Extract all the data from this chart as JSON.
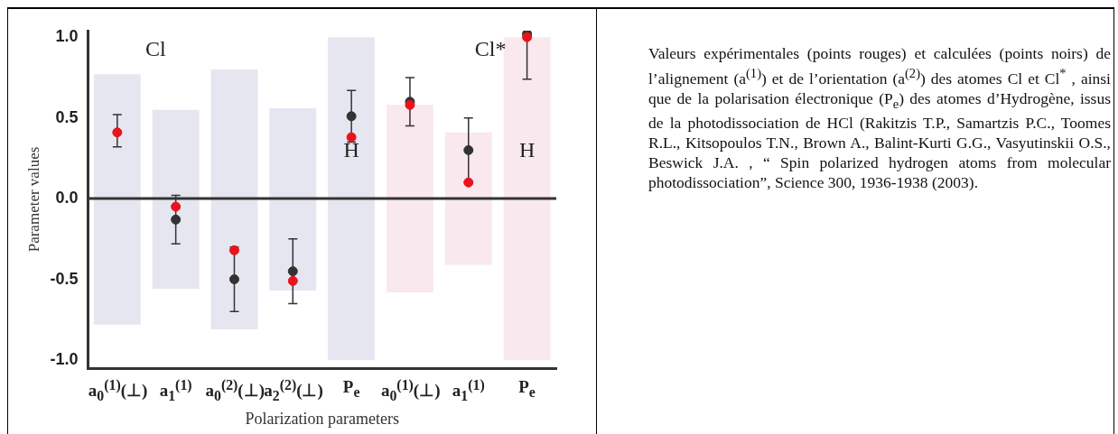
{
  "chart_data": [
    {
      "type": "bar",
      "xlabel": "Polarization parameters",
      "ylabel": "Parameter values",
      "categories": [
        "a$_{0}$$^{(1)}$(⊥)",
        "a$_{1}$$^{(1)}$",
        "a$_{0}$$^{(2)}$(⊥)",
        "a$_{2}$$^{(2)}$(⊥)",
        "P$_{e}$",
        "a$_{0}$$^{(1)}$(⊥)",
        "a$_{1}$$^{(1)}$",
        "P$_{e}$"
      ],
      "series": [
        {
          "type": "bar",
          "colors": [
            "#e6e6f0",
            "#e6e6f0",
            "#e6e6f0",
            "#e6e6f0",
            "#e6e6f0",
            "#f9e8ee",
            "#f9e8ee",
            "#f9e8ee"
          ],
          "base": [
            -0.78,
            -0.56,
            -0.81,
            -0.57,
            -1,
            -0.58,
            -0.41,
            -1
          ],
          "values": [
            1.55,
            1.11,
            1.61,
            1.13,
            2,
            1.16,
            0.82,
            2
          ]
        },
        {
          "type": "scatter",
          "color": "#333333",
          "values": [
            null,
            -0.13,
            -0.5,
            -0.45,
            0.51,
            0.6,
            0.3,
            1.02
          ],
          "errors": [
            null,
            [
              -0.28,
              0.02
            ],
            [
              -0.7,
              -0.3
            ],
            [
              -0.65,
              -0.25
            ],
            [
              0.35,
              0.67
            ],
            [
              0.45,
              0.75
            ],
            0.2,
            [
              0.74,
              1.02
            ]
          ]
        },
        {
          "type": "scatter",
          "color": "#e8141c",
          "values": [
            0.41,
            -0.05,
            -0.32,
            -0.51,
            0.38,
            0.58,
            0.1,
            1.0
          ],
          "errors": [
            [
              0.32,
              0.52
            ],
            null,
            null,
            null,
            null,
            null,
            null,
            null
          ]
        }
      ],
      "ylim": [
        -1.05,
        1.04
      ],
      "yticks": [
        {
          "value": -1,
          "label": "-1.0"
        },
        {
          "value": -0.5,
          "label": "-0.5"
        },
        {
          "value": 0,
          "label": "0.0"
        },
        {
          "value": 0.5,
          "label": "0.5"
        },
        {
          "value": 1,
          "label": "1.0"
        }
      ],
      "ref_lines": [
        {
          "axis": "y",
          "value": 0,
          "color": "#333333"
        }
      ],
      "annotations": [
        "Cl",
        "Cl*",
        "H",
        "H"
      ],
      "marker": "circle",
      "grid": false,
      "legend": false
    },
    {
      "type": "other",
      "annotations": [
        "Valeurs expérimentales (points rouges) et calculées (points noirs) de l’alignement (a$^{(1)}$) et de l’orientation (a$^{(2)}$) des atomes Cl et Cl$^{*}$ , ainsi que de la polarisation électronique (P$_{e}$) des atomes d’Hydrogène, issus de la photodissociation de HCl (Rakitzis T.P., Samartzis P.C., Toomes R.L., Kitsopoulos T.N., Brown A., Balint-Kurti G.G., Vasyutinskii O.S., Beswick J.A. , “ Spin polarized hydrogen atoms from molecular photodissociation”, Science 300, 1936-1938 (2003)."
      ]
    }
  ]
}
